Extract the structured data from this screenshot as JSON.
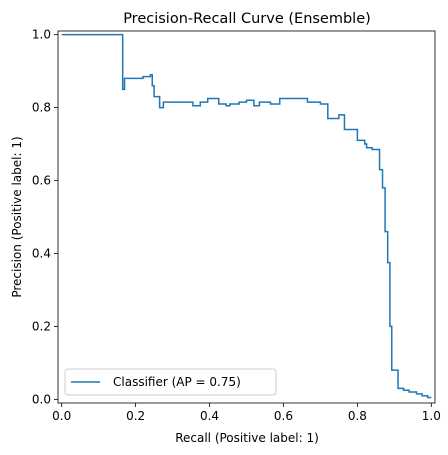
{
  "chart_data": {
    "type": "line",
    "title": "Precision-Recall Curve (Ensemble)",
    "xlabel": "Recall (Positive label: 1)",
    "ylabel": "Precision (Positive label: 1)",
    "xlim": [
      -0.01,
      1.01
    ],
    "ylim": [
      -0.01,
      1.01
    ],
    "xticks": [
      0.0,
      0.2,
      0.4,
      0.6,
      0.8,
      1.0
    ],
    "xtick_labels": [
      "0.0",
      "0.2",
      "0.4",
      "0.6",
      "0.8",
      "1.0"
    ],
    "yticks": [
      0.0,
      0.2,
      0.4,
      0.6,
      0.8,
      1.0
    ],
    "ytick_labels": [
      "0.0",
      "0.2",
      "0.4",
      "0.6",
      "0.8",
      "1.0"
    ],
    "grid": false,
    "legend_position": "lower-left",
    "series": [
      {
        "name": "Classifier (AP = 0.75)",
        "color": "#1f77b4",
        "drawstyle": "steps",
        "points": [
          [
            0.0,
            1.0
          ],
          [
            0.165,
            1.0
          ],
          [
            0.165,
            0.85
          ],
          [
            0.17,
            0.85
          ],
          [
            0.17,
            0.88
          ],
          [
            0.22,
            0.88
          ],
          [
            0.22,
            0.885
          ],
          [
            0.24,
            0.885
          ],
          [
            0.24,
            0.89
          ],
          [
            0.245,
            0.89
          ],
          [
            0.245,
            0.86
          ],
          [
            0.25,
            0.86
          ],
          [
            0.25,
            0.83
          ],
          [
            0.265,
            0.83
          ],
          [
            0.265,
            0.8
          ],
          [
            0.275,
            0.8
          ],
          [
            0.275,
            0.815
          ],
          [
            0.355,
            0.815
          ],
          [
            0.355,
            0.805
          ],
          [
            0.375,
            0.805
          ],
          [
            0.375,
            0.815
          ],
          [
            0.395,
            0.815
          ],
          [
            0.395,
            0.825
          ],
          [
            0.425,
            0.825
          ],
          [
            0.425,
            0.81
          ],
          [
            0.445,
            0.81
          ],
          [
            0.445,
            0.805
          ],
          [
            0.455,
            0.805
          ],
          [
            0.455,
            0.81
          ],
          [
            0.48,
            0.81
          ],
          [
            0.48,
            0.815
          ],
          [
            0.5,
            0.815
          ],
          [
            0.5,
            0.82
          ],
          [
            0.52,
            0.82
          ],
          [
            0.52,
            0.805
          ],
          [
            0.535,
            0.805
          ],
          [
            0.535,
            0.815
          ],
          [
            0.565,
            0.815
          ],
          [
            0.565,
            0.81
          ],
          [
            0.59,
            0.81
          ],
          [
            0.59,
            0.825
          ],
          [
            0.665,
            0.825
          ],
          [
            0.665,
            0.815
          ],
          [
            0.7,
            0.815
          ],
          [
            0.7,
            0.81
          ],
          [
            0.72,
            0.81
          ],
          [
            0.72,
            0.77
          ],
          [
            0.75,
            0.77
          ],
          [
            0.75,
            0.78
          ],
          [
            0.765,
            0.78
          ],
          [
            0.765,
            0.74
          ],
          [
            0.8,
            0.74
          ],
          [
            0.8,
            0.71
          ],
          [
            0.82,
            0.71
          ],
          [
            0.82,
            0.7
          ],
          [
            0.825,
            0.7
          ],
          [
            0.825,
            0.69
          ],
          [
            0.84,
            0.69
          ],
          [
            0.84,
            0.685
          ],
          [
            0.86,
            0.685
          ],
          [
            0.86,
            0.63
          ],
          [
            0.868,
            0.63
          ],
          [
            0.868,
            0.58
          ],
          [
            0.875,
            0.58
          ],
          [
            0.875,
            0.46
          ],
          [
            0.882,
            0.46
          ],
          [
            0.882,
            0.375
          ],
          [
            0.888,
            0.375
          ],
          [
            0.888,
            0.2
          ],
          [
            0.893,
            0.2
          ],
          [
            0.893,
            0.08
          ],
          [
            0.905,
            0.08
          ],
          [
            0.905,
            0.08
          ],
          [
            0.91,
            0.08
          ],
          [
            0.91,
            0.03
          ],
          [
            0.925,
            0.03
          ],
          [
            0.925,
            0.025
          ],
          [
            0.94,
            0.025
          ],
          [
            0.94,
            0.02
          ],
          [
            0.96,
            0.02
          ],
          [
            0.96,
            0.015
          ],
          [
            0.975,
            0.015
          ],
          [
            0.975,
            0.01
          ],
          [
            0.99,
            0.01
          ],
          [
            0.99,
            0.005
          ],
          [
            1.0,
            0.005
          ]
        ]
      }
    ]
  }
}
